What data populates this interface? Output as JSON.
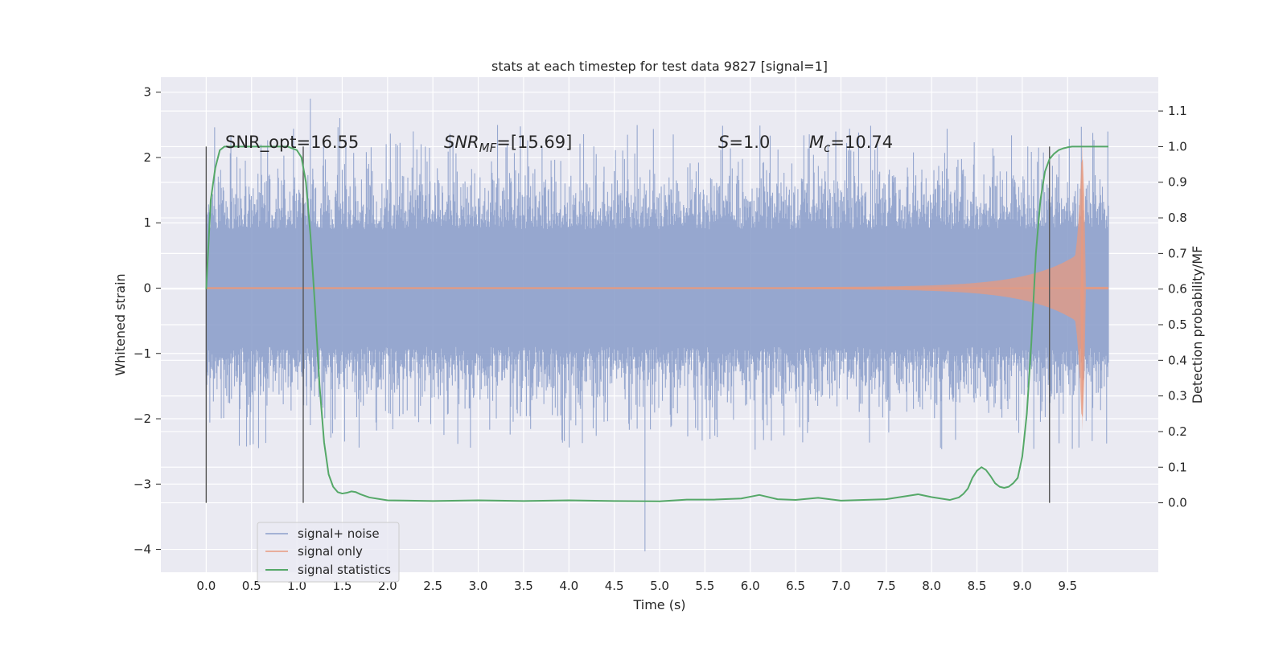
{
  "chart_data": {
    "type": "line",
    "title": "stats at each timestep for test data 9827 [signal=1]",
    "xlabel": "Time (s)",
    "ylabel": "Whitened strain",
    "y2label": "Detection probability/MF",
    "xlim": [
      -0.5,
      10.5
    ],
    "ylim": [
      -4.35,
      3.23
    ],
    "y2lim": [
      -0.195,
      1.195
    ],
    "x_ticks": [
      "0.0",
      "0.5",
      "1.0",
      "1.5",
      "2.0",
      "2.5",
      "3.0",
      "3.5",
      "4.0",
      "4.5",
      "5.0",
      "5.5",
      "6.0",
      "6.5",
      "7.0",
      "7.5",
      "8.0",
      "8.5",
      "9.0",
      "9.5"
    ],
    "y_ticks": [
      "3",
      "2",
      "1",
      "0",
      "−1",
      "−2",
      "−3",
      "−4"
    ],
    "y2_ticks": [
      "1.1",
      "1.0",
      "0.9",
      "0.8",
      "0.7",
      "0.6",
      "0.5",
      "0.4",
      "0.3",
      "0.2",
      "0.1",
      "0.0"
    ],
    "grid": true,
    "legend_position": "lower-left",
    "annotations": {
      "snr_opt": "SNR_opt=16.55",
      "snr_mf_pre": "SNR",
      "snr_mf_sub": "MF",
      "snr_mf_post": "=[15.69]",
      "s_pre": "S",
      "s_post": "=1.0",
      "mc_pre": "M",
      "mc_sub": "c",
      "mc_post": "=10.74"
    },
    "vertical_lines": [
      0.0,
      1.07,
      9.3
    ],
    "series": [
      {
        "name": "signal+ noise",
        "color": "#8da0cb",
        "x_range": [
          0.0,
          9.95
        ],
        "envelope": {
          "typical": 1.0,
          "peak_max": 2.9,
          "trough_min": -4.03
        }
      },
      {
        "name": "signal only",
        "color": "#e79a7f",
        "chirp": {
          "t_merge": 9.66,
          "peak_amp": 2.3,
          "ringdown_end": 9.7
        }
      },
      {
        "name": "signal statistics",
        "color": "#55a868",
        "x": [
          0.0,
          0.05,
          0.1,
          0.15,
          0.2,
          0.3,
          0.5,
          0.7,
          0.9,
          1.0,
          1.05,
          1.1,
          1.15,
          1.2,
          1.25,
          1.3,
          1.35,
          1.4,
          1.45,
          1.5,
          1.55,
          1.6,
          1.65,
          1.7,
          1.8,
          2.0,
          2.5,
          3.0,
          3.5,
          4.0,
          4.5,
          5.0,
          5.3,
          5.6,
          5.9,
          6.1,
          6.3,
          6.5,
          6.75,
          7.0,
          7.5,
          7.85,
          8.0,
          8.2,
          8.3,
          8.35,
          8.4,
          8.45,
          8.5,
          8.55,
          8.6,
          8.65,
          8.7,
          8.75,
          8.8,
          8.85,
          8.9,
          8.95,
          9.0,
          9.05,
          9.1,
          9.15,
          9.2,
          9.25,
          9.3,
          9.35,
          9.4,
          9.45,
          9.5,
          9.55,
          9.6,
          9.65,
          9.7,
          9.8,
          9.9,
          9.95
        ],
        "y": [
          0.6,
          0.85,
          0.94,
          0.99,
          1.0,
          1.0,
          1.0,
          1.0,
          1.0,
          0.99,
          0.97,
          0.9,
          0.75,
          0.55,
          0.33,
          0.17,
          0.08,
          0.045,
          0.03,
          0.026,
          0.028,
          0.032,
          0.03,
          0.024,
          0.015,
          0.007,
          0.005,
          0.007,
          0.005,
          0.007,
          0.005,
          0.004,
          0.009,
          0.009,
          0.012,
          0.022,
          0.01,
          0.008,
          0.014,
          0.006,
          0.01,
          0.024,
          0.016,
          0.008,
          0.015,
          0.025,
          0.04,
          0.07,
          0.09,
          0.1,
          0.092,
          0.075,
          0.055,
          0.045,
          0.042,
          0.045,
          0.055,
          0.07,
          0.13,
          0.25,
          0.45,
          0.7,
          0.85,
          0.93,
          0.965,
          0.98,
          0.99,
          0.995,
          0.998,
          1.0,
          1.0,
          1.0,
          1.0,
          1.0,
          1.0,
          1.0
        ]
      }
    ]
  }
}
